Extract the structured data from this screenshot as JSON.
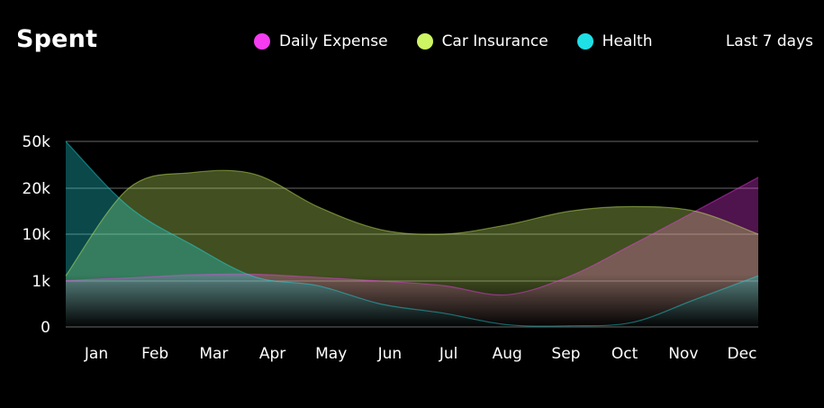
{
  "title": "Spent",
  "range_label": "Last 7 days",
  "legend": [
    {
      "name": "Daily Expense",
      "color": "#f53cf0"
    },
    {
      "name": "Car Insurance",
      "color": "#cdf564"
    },
    {
      "name": "Health",
      "color": "#1ee0e6"
    }
  ],
  "chart_data": {
    "type": "area",
    "categories": [
      "Jan",
      "Feb",
      "Mar",
      "Apr",
      "May",
      "Jun",
      "Jul",
      "Aug",
      "Sep",
      "Oct",
      "Nov",
      "Dec"
    ],
    "y_ticks": [
      "0",
      "1k",
      "10k",
      "20k",
      "50k"
    ],
    "y_scale": "categorical-spaced (0, 1k, 10k, 20k, 50k)",
    "grid": true,
    "legend_position": "top-right",
    "series": [
      {
        "name": "Daily Expense",
        "color": "#f53cf0",
        "values": [
          1100,
          1600,
          2200,
          2300,
          1700,
          1000,
          900,
          700,
          1900,
          8000,
          15000,
          27000
        ]
      },
      {
        "name": "Car Insurance",
        "color": "#cdf564",
        "values": [
          2000,
          20000,
          30000,
          29000,
          16000,
          11000,
          10000,
          12000,
          15000,
          16000,
          15000,
          10000
        ]
      },
      {
        "name": "Health",
        "color": "#1ee0e6",
        "values": [
          50000,
          16000,
          8000,
          1800,
          900,
          500,
          300,
          50,
          25,
          100,
          600,
          2000
        ]
      }
    ]
  }
}
